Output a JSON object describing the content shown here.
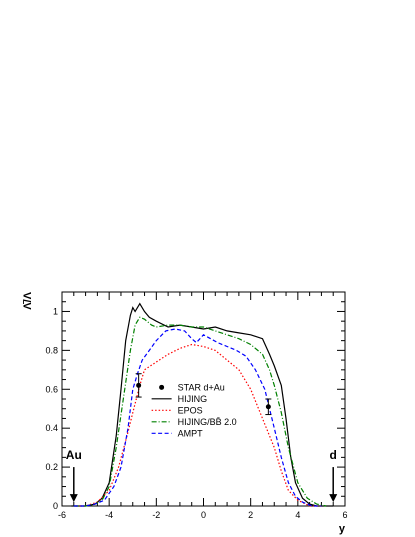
{
  "chart_data": {
    "type": "line",
    "title": "",
    "xlabel": "y",
    "ylabel": "Λ̄/Λ",
    "xlim": [
      -6,
      6
    ],
    "ylim": [
      0,
      1.1
    ],
    "xticks": [
      -6,
      -4,
      -2,
      0,
      2,
      4,
      6
    ],
    "yticks": [
      0,
      0.2,
      0.4,
      0.6,
      0.8,
      1
    ],
    "xtick_labels": [
      "-6",
      "-4",
      "-2",
      "0",
      "2",
      "4",
      "6"
    ],
    "ytick_labels": [
      "0",
      "0.2",
      "0.4",
      "0.6",
      "0.8",
      "1"
    ],
    "grid": false,
    "legend_position": "lower-center",
    "series": [
      {
        "name": "HIJING",
        "color": "#000000",
        "dash": "solid",
        "x": [
          -5.6,
          -5.0,
          -4.6,
          -4.3,
          -4.0,
          -3.7,
          -3.5,
          -3.3,
          -3.1,
          -3.0,
          -2.9,
          -2.7,
          -2.5,
          -2.3,
          -2.0,
          -1.5,
          -1.0,
          -0.5,
          0.0,
          0.5,
          1.0,
          1.5,
          2.0,
          2.5,
          2.8,
          3.0,
          3.3,
          3.5,
          3.7,
          3.9,
          4.2,
          4.5,
          4.8,
          5.2,
          5.5
        ],
        "y": [
          0.0,
          0.0,
          0.01,
          0.04,
          0.12,
          0.36,
          0.6,
          0.85,
          0.98,
          1.02,
          1.0,
          1.04,
          1.0,
          0.97,
          0.95,
          0.92,
          0.93,
          0.92,
          0.91,
          0.92,
          0.9,
          0.89,
          0.88,
          0.86,
          0.78,
          0.72,
          0.62,
          0.45,
          0.25,
          0.12,
          0.04,
          0.01,
          0.0,
          0.0,
          0.0
        ]
      },
      {
        "name": "EPOS",
        "color": "#ff0000",
        "dash": "dotted",
        "x": [
          -5.4,
          -5.0,
          -4.5,
          -4.0,
          -3.6,
          -3.2,
          -3.0,
          -2.7,
          -2.5,
          -2.0,
          -1.5,
          -1.0,
          -0.5,
          0.0,
          0.5,
          1.0,
          1.5,
          2.0,
          2.5,
          3.0,
          3.3,
          3.6,
          4.0,
          4.5,
          5.0
        ],
        "y": [
          0.0,
          0.0,
          0.02,
          0.08,
          0.2,
          0.38,
          0.48,
          0.62,
          0.7,
          0.74,
          0.78,
          0.81,
          0.83,
          0.82,
          0.8,
          0.75,
          0.7,
          0.6,
          0.45,
          0.3,
          0.18,
          0.08,
          0.03,
          0.0,
          0.0
        ]
      },
      {
        "name": "HIJING/BB̄ 2.0",
        "color": "#008000",
        "dash": "dashdot",
        "x": [
          -5.5,
          -5.0,
          -4.6,
          -4.3,
          -4.0,
          -3.7,
          -3.4,
          -3.1,
          -2.9,
          -2.7,
          -2.5,
          -2.2,
          -2.0,
          -1.5,
          -1.0,
          -0.5,
          0.0,
          0.5,
          1.0,
          1.5,
          2.0,
          2.5,
          2.8,
          3.0,
          3.3,
          3.6,
          4.0,
          4.4,
          4.8,
          5.2
        ],
        "y": [
          0.0,
          0.0,
          0.01,
          0.03,
          0.1,
          0.3,
          0.55,
          0.8,
          0.93,
          0.97,
          0.96,
          0.93,
          0.92,
          0.93,
          0.93,
          0.92,
          0.92,
          0.9,
          0.88,
          0.86,
          0.83,
          0.78,
          0.7,
          0.62,
          0.48,
          0.3,
          0.12,
          0.04,
          0.01,
          0.0
        ]
      },
      {
        "name": "AMPT",
        "color": "#0000ff",
        "dash": "dashed",
        "x": [
          -5.5,
          -5.0,
          -4.6,
          -4.2,
          -3.8,
          -3.5,
          -3.2,
          -3.0,
          -2.8,
          -2.6,
          -2.3,
          -2.0,
          -1.6,
          -1.2,
          -0.8,
          -0.5,
          -0.3,
          0.0,
          0.3,
          0.6,
          1.0,
          1.4,
          1.8,
          2.2,
          2.6,
          2.8,
          3.0,
          3.3,
          3.6,
          3.9,
          4.2,
          4.6,
          5.0
        ],
        "y": [
          0.0,
          0.0,
          0.01,
          0.03,
          0.1,
          0.2,
          0.4,
          0.6,
          0.68,
          0.75,
          0.8,
          0.85,
          0.9,
          0.91,
          0.9,
          0.86,
          0.84,
          0.88,
          0.86,
          0.84,
          0.82,
          0.8,
          0.77,
          0.7,
          0.6,
          0.5,
          0.4,
          0.25,
          0.12,
          0.05,
          0.02,
          0.0,
          0.0
        ]
      }
    ],
    "data_points": {
      "name": "STAR d+Au",
      "color": "#000000",
      "points": [
        {
          "x": -2.75,
          "y": 0.62,
          "err_low": 0.56,
          "err_high": 0.68
        },
        {
          "x": 2.75,
          "y": 0.51,
          "err_low": 0.47,
          "err_high": 0.55
        }
      ]
    },
    "annotations": [
      {
        "text": "Au",
        "x": -5.5,
        "arrow_from_y": 0.2,
        "arrow_to_y": 0.02
      },
      {
        "text": "d",
        "x": 5.5,
        "arrow_from_y": 0.2,
        "arrow_to_y": 0.02
      }
    ]
  }
}
